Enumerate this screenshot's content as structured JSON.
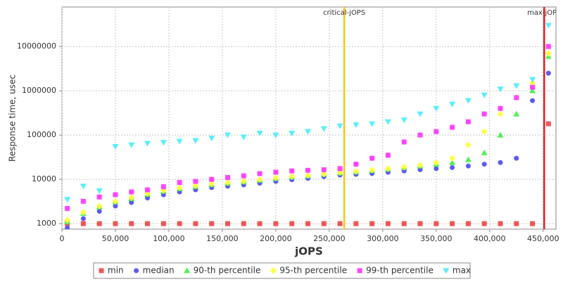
{
  "chart_data": {
    "type": "scatter",
    "x_label": "jOPS",
    "y_label": "Response time, usec",
    "log_y": true,
    "grid": true,
    "xlim": [
      0,
      462000
    ],
    "ylim": [
      750,
      78000000
    ],
    "xticks": [
      0,
      {
        "value": 50000,
        "label": "50,000"
      },
      {
        "value": 100000,
        "label": "100,000"
      },
      {
        "value": 150000,
        "label": "150,000"
      },
      {
        "value": 200000,
        "label": "200,000"
      },
      {
        "value": 250000,
        "label": "250,000"
      },
      {
        "value": 300000,
        "label": "300,000"
      },
      {
        "value": 350000,
        "label": "350,000"
      },
      {
        "value": 400000,
        "label": "400,000"
      },
      {
        "value": 450000,
        "label": "450,000"
      }
    ],
    "yticks": [
      1000,
      10000,
      100000,
      1000000,
      10000000
    ],
    "annotations": [
      {
        "label": "critical-jOPS",
        "x": 264000,
        "color": "#ffc020"
      },
      {
        "label": "max-jOPS",
        "x": 451000,
        "color": "#e02020"
      }
    ],
    "x": [
      5000,
      20000,
      35000,
      50000,
      65000,
      80000,
      95000,
      110000,
      125000,
      140000,
      155000,
      170000,
      185000,
      200000,
      215000,
      230000,
      245000,
      260000,
      275000,
      290000,
      305000,
      320000,
      335000,
      350000,
      365000,
      380000,
      395000,
      410000,
      425000,
      440000,
      455000
    ],
    "series": [
      {
        "name": "min",
        "color": "#f05555",
        "marker": "square",
        "values": [
          1000,
          1000,
          1000,
          1000,
          1000,
          1000,
          1000,
          1000,
          1000,
          1000,
          1000,
          1000,
          1000,
          1000,
          1000,
          1000,
          1000,
          1000,
          1000,
          1000,
          1000,
          1000,
          1000,
          1000,
          1000,
          1000,
          1000,
          1000,
          1000,
          1000,
          180000
        ]
      },
      {
        "name": "median",
        "color": "#5b5bf0",
        "marker": "circle",
        "values": [
          800,
          1300,
          1900,
          2500,
          3000,
          3800,
          4500,
          5200,
          5800,
          6500,
          7000,
          7500,
          8200,
          9000,
          9800,
          10500,
          11500,
          12500,
          13000,
          13500,
          14500,
          15500,
          16500,
          17500,
          18500,
          20000,
          22000,
          24000,
          30000,
          600000,
          2500000
        ]
      },
      {
        "name": "90-th percentile",
        "color": "#55ee55",
        "marker": "triangle",
        "values": [
          1100,
          1700,
          2400,
          3100,
          3700,
          4600,
          5400,
          6200,
          6900,
          7600,
          8200,
          8800,
          9600,
          10500,
          11300,
          12000,
          13000,
          14000,
          14800,
          15800,
          17000,
          18500,
          20000,
          22000,
          24000,
          28000,
          40000,
          100000,
          300000,
          1000000,
          6000000
        ]
      },
      {
        "name": "95-th percentile",
        "color": "#ffff44",
        "marker": "diamond",
        "values": [
          1200,
          1800,
          2500,
          3200,
          3900,
          4800,
          5600,
          6400,
          7200,
          7900,
          8500,
          9100,
          9900,
          10800,
          11600,
          12300,
          13300,
          14300,
          15200,
          16300,
          17500,
          19000,
          21000,
          24000,
          30000,
          60000,
          120000,
          300000,
          700000,
          1500000,
          7000000
        ]
      },
      {
        "name": "99-th percentile",
        "color": "#ff44ff",
        "marker": "square",
        "values": [
          2200,
          3200,
          4000,
          4500,
          5200,
          5800,
          6800,
          8500,
          9000,
          10000,
          11000,
          12000,
          13500,
          14500,
          15500,
          16000,
          16500,
          17500,
          22000,
          30000,
          35000,
          70000,
          100000,
          120000,
          150000,
          200000,
          300000,
          400000,
          700000,
          1200000,
          10000000
        ]
      },
      {
        "name": "max",
        "color": "#55eeff",
        "marker": "triangle-down",
        "values": [
          3500,
          7000,
          5500,
          55000,
          60000,
          65000,
          68000,
          72000,
          75000,
          85000,
          100000,
          90000,
          110000,
          100000,
          110000,
          120000,
          140000,
          160000,
          170000,
          180000,
          200000,
          220000,
          300000,
          400000,
          500000,
          600000,
          800000,
          1100000,
          1300000,
          1800000,
          30000000
        ]
      }
    ]
  }
}
